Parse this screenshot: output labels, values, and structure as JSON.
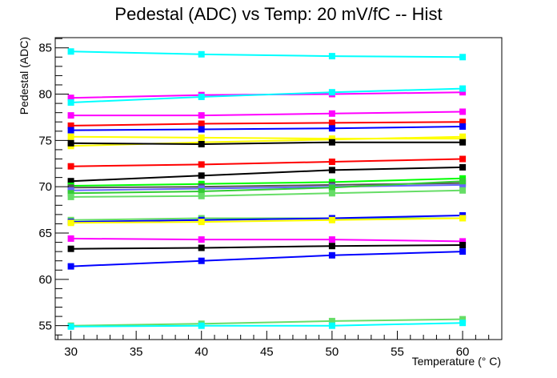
{
  "chart_data": {
    "type": "line",
    "title": "Pedestal (ADC) vs Temp: 20 mV/fC -- Hist",
    "xlabel": "Temperature (° C)",
    "ylabel": "Pedestal (ADC)",
    "xlim": [
      28.8,
      63
    ],
    "ylim": [
      53.5,
      86.1
    ],
    "x": [
      30,
      40,
      50,
      60
    ],
    "x_ticks": [
      30,
      35,
      40,
      45,
      50,
      55,
      60
    ],
    "y_ticks": [
      55,
      60,
      65,
      70,
      75,
      80,
      85
    ],
    "grid": false,
    "legend": "none",
    "series": [
      {
        "color": "#00ffff",
        "values": [
          84.6,
          84.3,
          84.1,
          84.0
        ]
      },
      {
        "color": "#ff00ff",
        "values": [
          79.6,
          79.9,
          80.0,
          80.2
        ]
      },
      {
        "color": "#00ffff",
        "values": [
          79.1,
          79.7,
          80.2,
          80.6
        ]
      },
      {
        "color": "#ff00ff",
        "values": [
          77.7,
          77.7,
          77.9,
          78.1
        ]
      },
      {
        "color": "#ff0000",
        "values": [
          76.6,
          76.8,
          76.9,
          77.0
        ]
      },
      {
        "color": "#0000ff",
        "values": [
          76.1,
          76.2,
          76.3,
          76.5
        ]
      },
      {
        "color": "#ffff00",
        "values": [
          75.4,
          75.3,
          75.2,
          75.2
        ]
      },
      {
        "color": "#ffff00",
        "values": [
          74.4,
          74.8,
          75.1,
          75.4
        ]
      },
      {
        "color": "#000000",
        "values": [
          74.7,
          74.6,
          74.8,
          74.8
        ]
      },
      {
        "color": "#ff0000",
        "values": [
          72.2,
          72.4,
          72.7,
          73.0
        ]
      },
      {
        "color": "#000000",
        "values": [
          70.6,
          71.2,
          71.8,
          72.1
        ]
      },
      {
        "color": "#00ff00",
        "values": [
          70.1,
          70.3,
          70.5,
          70.9
        ]
      },
      {
        "color": "#555555",
        "values": [
          69.9,
          70.0,
          70.2,
          70.4
        ]
      },
      {
        "color": "#6666ff",
        "values": [
          69.6,
          69.8,
          70.0,
          70.2
        ]
      },
      {
        "color": "#33cc33",
        "values": [
          69.3,
          69.5,
          69.9,
          70.6
        ]
      },
      {
        "color": "#66dd66",
        "values": [
          68.9,
          69.0,
          69.3,
          69.6
        ]
      },
      {
        "color": "#66dd66",
        "values": [
          66.4,
          66.6,
          66.6,
          66.6
        ]
      },
      {
        "color": "#0000ff",
        "values": [
          66.2,
          66.4,
          66.6,
          66.9
        ]
      },
      {
        "color": "#ffff00",
        "values": [
          66.1,
          66.2,
          66.4,
          66.6
        ]
      },
      {
        "color": "#ff00ff",
        "values": [
          64.4,
          64.3,
          64.3,
          64.1
        ]
      },
      {
        "color": "#000000",
        "values": [
          63.3,
          63.4,
          63.6,
          63.7
        ]
      },
      {
        "color": "#0000ff",
        "values": [
          61.4,
          62.0,
          62.6,
          63.0
        ]
      },
      {
        "color": "#66dd66",
        "values": [
          55.0,
          55.2,
          55.5,
          55.7
        ]
      },
      {
        "color": "#00ffff",
        "values": [
          54.9,
          55.0,
          55.0,
          55.3
        ]
      }
    ]
  }
}
